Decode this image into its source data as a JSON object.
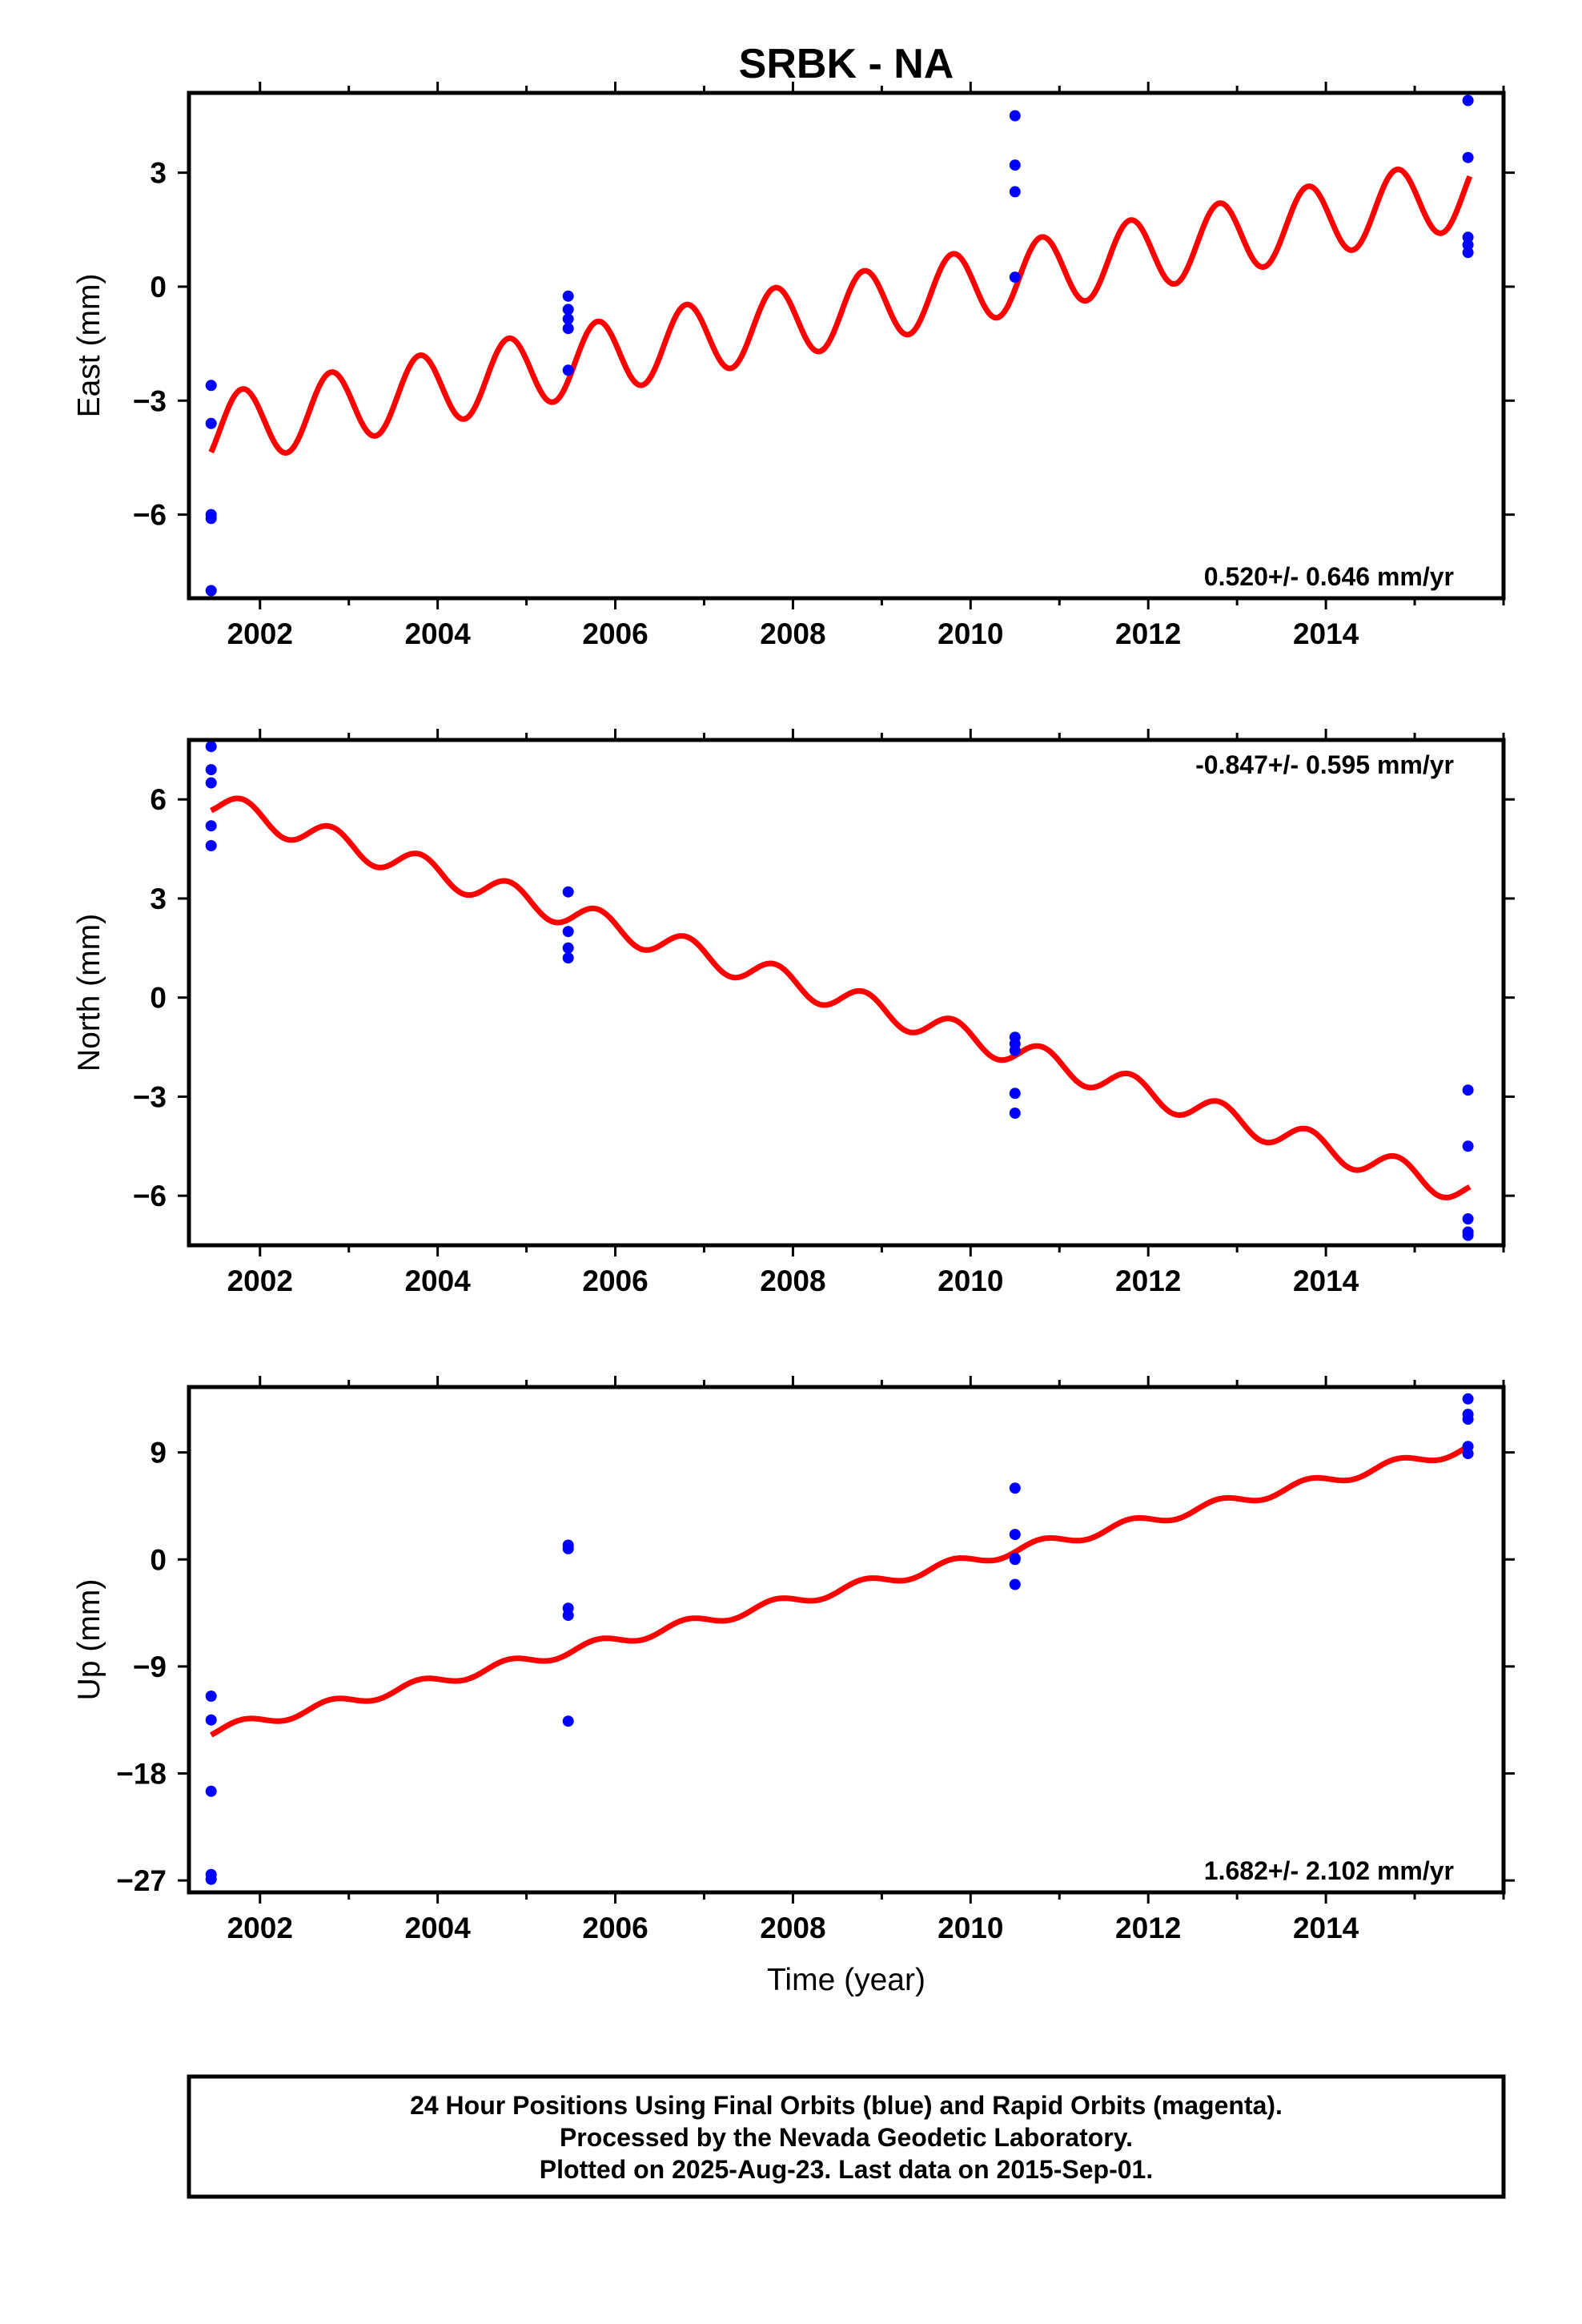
{
  "figure": {
    "title": "SRBK - NA",
    "xlabel": "Time (year)",
    "footer": [
      "24 Hour Positions Using Final Orbits (blue) and Rapid Orbits (magenta).",
      "Processed by the Nevada Geodetic Laboratory.",
      "Plotted on 2025-Aug-23. Last data on 2015-Sep-01."
    ]
  },
  "chart_data": [
    {
      "type": "scatter",
      "ylabel": "East (mm)",
      "rate_label": "0.520+/- 0.646 mm/yr",
      "rate_position": "bottom-right",
      "xlim": [
        2001.2,
        2016.0
      ],
      "ylim": [
        -8.2,
        5.1
      ],
      "xticks": [
        2002,
        2004,
        2006,
        2008,
        2010,
        2012,
        2014
      ],
      "yticks": [
        -6,
        -3,
        0,
        3
      ],
      "ytick_labels": [
        "−6",
        "−3",
        "0",
        "3"
      ],
      "x_start": 2001.45,
      "x_end": 2015.62,
      "model": {
        "start_value": -3.8,
        "end_value": 2.5,
        "seasonal_amplitude": 0.95,
        "phase": -0.55
      },
      "points": [
        {
          "x": 2001.45,
          "y": -2.6
        },
        {
          "x": 2001.45,
          "y": -3.6
        },
        {
          "x": 2001.45,
          "y": -6.0
        },
        {
          "x": 2001.45,
          "y": -6.1
        },
        {
          "x": 2001.45,
          "y": -8.0
        },
        {
          "x": 2005.47,
          "y": -0.25
        },
        {
          "x": 2005.47,
          "y": -0.6
        },
        {
          "x": 2005.47,
          "y": -0.85
        },
        {
          "x": 2005.47,
          "y": -1.1
        },
        {
          "x": 2005.47,
          "y": -2.2
        },
        {
          "x": 2010.5,
          "y": 4.5
        },
        {
          "x": 2010.5,
          "y": 3.2
        },
        {
          "x": 2010.5,
          "y": 2.5
        },
        {
          "x": 2010.5,
          "y": 0.25
        },
        {
          "x": 2015.6,
          "y": 4.9
        },
        {
          "x": 2015.6,
          "y": 3.4
        },
        {
          "x": 2015.6,
          "y": 1.3
        },
        {
          "x": 2015.6,
          "y": 1.1
        },
        {
          "x": 2015.6,
          "y": 0.9
        }
      ]
    },
    {
      "type": "scatter",
      "ylabel": "North (mm)",
      "rate_label": "-0.847+/- 0.595 mm/yr",
      "rate_position": "top-right",
      "xlim": [
        2001.2,
        2016.0
      ],
      "ylim": [
        -7.5,
        7.8
      ],
      "xticks": [
        2002,
        2004,
        2006,
        2008,
        2010,
        2012,
        2014
      ],
      "yticks": [
        -6,
        -3,
        0,
        3,
        6
      ],
      "ytick_labels": [
        "−6",
        "−3",
        "0",
        "3",
        "6"
      ],
      "x_start": 2001.45,
      "x_end": 2015.62,
      "model": {
        "start_value": 5.9,
        "end_value": -5.9,
        "seasonal_amplitude": 0.4,
        "phase": -0.55
      },
      "points": [
        {
          "x": 2001.45,
          "y": 7.6
        },
        {
          "x": 2001.45,
          "y": 6.9
        },
        {
          "x": 2001.45,
          "y": 6.5
        },
        {
          "x": 2001.45,
          "y": 5.2
        },
        {
          "x": 2001.45,
          "y": 4.6
        },
        {
          "x": 2005.47,
          "y": 3.2
        },
        {
          "x": 2005.47,
          "y": 2.0
        },
        {
          "x": 2005.47,
          "y": 1.5
        },
        {
          "x": 2005.47,
          "y": 1.2
        },
        {
          "x": 2010.5,
          "y": -1.2
        },
        {
          "x": 2010.5,
          "y": -1.4
        },
        {
          "x": 2010.5,
          "y": -1.6
        },
        {
          "x": 2010.5,
          "y": -2.9
        },
        {
          "x": 2010.5,
          "y": -3.5
        },
        {
          "x": 2015.6,
          "y": -2.8
        },
        {
          "x": 2015.6,
          "y": -4.5
        },
        {
          "x": 2015.6,
          "y": -6.7
        },
        {
          "x": 2015.6,
          "y": -7.1
        },
        {
          "x": 2015.6,
          "y": -7.2
        }
      ]
    },
    {
      "type": "scatter",
      "ylabel": "Up (mm)",
      "rate_label": "1.682+/- 2.102 mm/yr",
      "rate_position": "bottom-right",
      "xlim": [
        2001.2,
        2016.0
      ],
      "ylim": [
        -28,
        14.5
      ],
      "xticks": [
        2002,
        2004,
        2006,
        2008,
        2010,
        2012,
        2014
      ],
      "yticks": [
        -27,
        -18,
        -9,
        0,
        9
      ],
      "ytick_labels": [
        "−27",
        "−18",
        "−9",
        "0",
        "9"
      ],
      "x_start": 2001.45,
      "x_end": 2015.62,
      "model": {
        "start_value": -14.5,
        "end_value": 9.4,
        "seasonal_amplitude": 0.45,
        "phase": -0.55
      },
      "points": [
        {
          "x": 2001.45,
          "y": -11.5
        },
        {
          "x": 2001.45,
          "y": -13.5
        },
        {
          "x": 2001.45,
          "y": -19.5
        },
        {
          "x": 2001.45,
          "y": -26.5
        },
        {
          "x": 2001.45,
          "y": -26.9
        },
        {
          "x": 2005.47,
          "y": 1.2
        },
        {
          "x": 2005.47,
          "y": 0.9
        },
        {
          "x": 2005.47,
          "y": -4.1
        },
        {
          "x": 2005.47,
          "y": -4.7
        },
        {
          "x": 2005.47,
          "y": -13.6
        },
        {
          "x": 2010.5,
          "y": 6.0
        },
        {
          "x": 2010.5,
          "y": 2.1
        },
        {
          "x": 2010.5,
          "y": 0.1
        },
        {
          "x": 2010.5,
          "y": 0.0
        },
        {
          "x": 2010.5,
          "y": -2.1
        },
        {
          "x": 2015.6,
          "y": 13.5
        },
        {
          "x": 2015.6,
          "y": 12.2
        },
        {
          "x": 2015.6,
          "y": 11.8
        },
        {
          "x": 2015.6,
          "y": 9.5
        },
        {
          "x": 2015.6,
          "y": 8.9
        }
      ]
    }
  ],
  "colors": {
    "data_points": "#0000ff",
    "model_line": "#ff0000",
    "frame": "#000000"
  }
}
